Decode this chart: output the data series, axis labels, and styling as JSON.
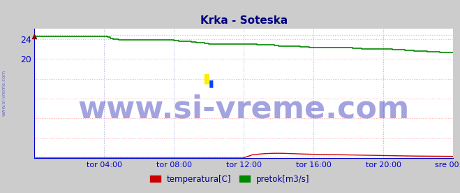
{
  "title": "Krka - Soteska",
  "title_color": "#000080",
  "bg_color": "#cccccc",
  "plot_bg_color": "#ffffff",
  "grid_color_dotted": "#ff9999",
  "grid_color_vert": "#aaaadd",
  "ylabel_color": "#0000cc",
  "xlabel_color": "#0000cc",
  "xlim": [
    0,
    288
  ],
  "ylim": [
    0,
    26.0
  ],
  "ytick_values": [
    20,
    24
  ],
  "ytick_labels": [
    "20",
    "24"
  ],
  "xtick_labels": [
    "tor 04:00",
    "tor 08:00",
    "tor 12:00",
    "tor 16:00",
    "tor 20:00",
    "sre 00:00"
  ],
  "xtick_positions": [
    48,
    96,
    144,
    192,
    240,
    288
  ],
  "all_yticks": [
    0,
    4,
    8,
    12,
    16,
    20,
    24
  ],
  "watermark": "www.si-vreme.com",
  "watermark_color": "#3333bb",
  "watermark_alpha": 0.45,
  "watermark_fontsize": 32,
  "legend_temperatura": "temperatura[C]",
  "legend_pretok": "pretok[m3/s]",
  "line_temp_color": "#cc0000",
  "line_flow_color": "#008800",
  "dot_line_color_temp": "#ffaaaa",
  "dot_line_color_flow": "#aaddaa",
  "axis_color": "#0000cc",
  "flow_max_y": 24.8,
  "temp_max_y": 0.3,
  "flow_data_x": [
    0,
    3,
    6,
    9,
    12,
    15,
    18,
    21,
    24,
    27,
    30,
    33,
    36,
    39,
    42,
    45,
    48,
    50,
    52,
    54,
    56,
    58,
    60,
    63,
    66,
    69,
    72,
    75,
    78,
    81,
    84,
    87,
    90,
    93,
    96,
    99,
    102,
    105,
    108,
    111,
    114,
    117,
    120,
    123,
    126,
    129,
    132,
    135,
    138,
    141,
    144,
    147,
    150,
    153,
    156,
    159,
    162,
    165,
    168,
    171,
    174,
    177,
    180,
    183,
    186,
    189,
    192,
    195,
    198,
    201,
    204,
    207,
    210,
    213,
    216,
    219,
    222,
    225,
    228,
    231,
    234,
    237,
    240,
    243,
    246,
    249,
    252,
    255,
    258,
    261,
    264,
    267,
    270,
    273,
    276,
    279,
    282,
    285,
    288
  ],
  "flow_data_y": [
    24.5,
    24.5,
    24.5,
    24.5,
    24.5,
    24.5,
    24.5,
    24.5,
    24.5,
    24.5,
    24.5,
    24.5,
    24.5,
    24.5,
    24.5,
    24.5,
    24.5,
    24.3,
    24.1,
    24.0,
    23.9,
    23.8,
    23.8,
    23.8,
    23.8,
    23.8,
    23.8,
    23.8,
    23.8,
    23.8,
    23.8,
    23.8,
    23.8,
    23.8,
    23.6,
    23.5,
    23.5,
    23.5,
    23.4,
    23.3,
    23.2,
    23.1,
    23.0,
    23.0,
    23.0,
    23.0,
    23.0,
    23.0,
    23.0,
    23.0,
    22.9,
    22.9,
    22.9,
    22.8,
    22.8,
    22.8,
    22.8,
    22.7,
    22.6,
    22.6,
    22.6,
    22.5,
    22.5,
    22.4,
    22.4,
    22.3,
    22.3,
    22.3,
    22.2,
    22.2,
    22.2,
    22.2,
    22.2,
    22.2,
    22.2,
    22.1,
    22.1,
    22.0,
    22.0,
    22.0,
    22.0,
    22.0,
    22.0,
    22.0,
    21.9,
    21.9,
    21.8,
    21.7,
    21.7,
    21.6,
    21.5,
    21.5,
    21.4,
    21.4,
    21.4,
    21.3,
    21.3,
    21.3,
    21.3
  ],
  "temp_data_x": [
    0,
    10,
    20,
    30,
    40,
    48,
    60,
    70,
    80,
    90,
    96,
    100,
    110,
    120,
    130,
    140,
    143,
    144,
    146,
    148,
    150,
    155,
    160,
    165,
    168,
    170,
    175,
    180,
    185,
    192,
    200,
    210,
    220,
    230,
    240,
    250,
    260,
    270,
    280,
    288
  ],
  "temp_data_y": [
    0.05,
    0.05,
    0.05,
    0.05,
    0.05,
    0.05,
    0.05,
    0.05,
    0.05,
    0.05,
    0.05,
    0.05,
    0.05,
    0.05,
    0.05,
    0.05,
    0.05,
    0.1,
    0.3,
    0.5,
    0.7,
    0.85,
    0.95,
    1.0,
    1.0,
    1.0,
    0.95,
    0.9,
    0.85,
    0.8,
    0.75,
    0.7,
    0.65,
    0.6,
    0.55,
    0.5,
    0.45,
    0.42,
    0.4,
    0.38
  ]
}
